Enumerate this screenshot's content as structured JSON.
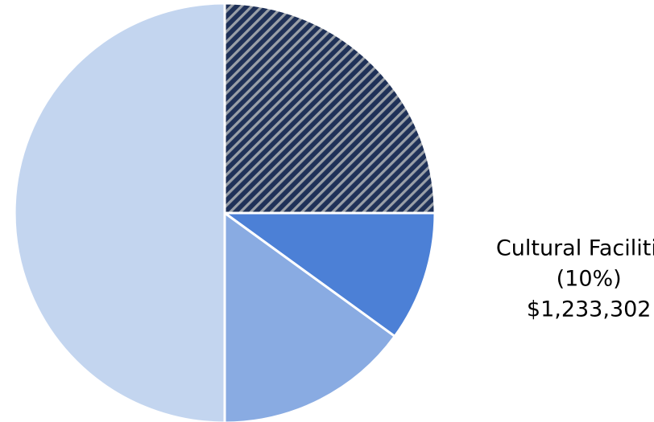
{
  "chart_data": {
    "type": "pie",
    "start_angle_deg": 0,
    "direction": "clockwise",
    "slices": [
      {
        "value": 25,
        "color": "#1f3158",
        "pattern": "diagonal-stripes",
        "pattern_color": "#9aa0a8",
        "label_lines": []
      },
      {
        "value": 10,
        "color": "#4c80d6",
        "label_lines": [
          "Cultural Facilities",
          "(10%)",
          "$1,233,302"
        ]
      },
      {
        "value": 15,
        "color": "#89abe2",
        "label_lines": []
      },
      {
        "value": 50,
        "color": "#c3d5ef",
        "label_lines": []
      }
    ]
  }
}
